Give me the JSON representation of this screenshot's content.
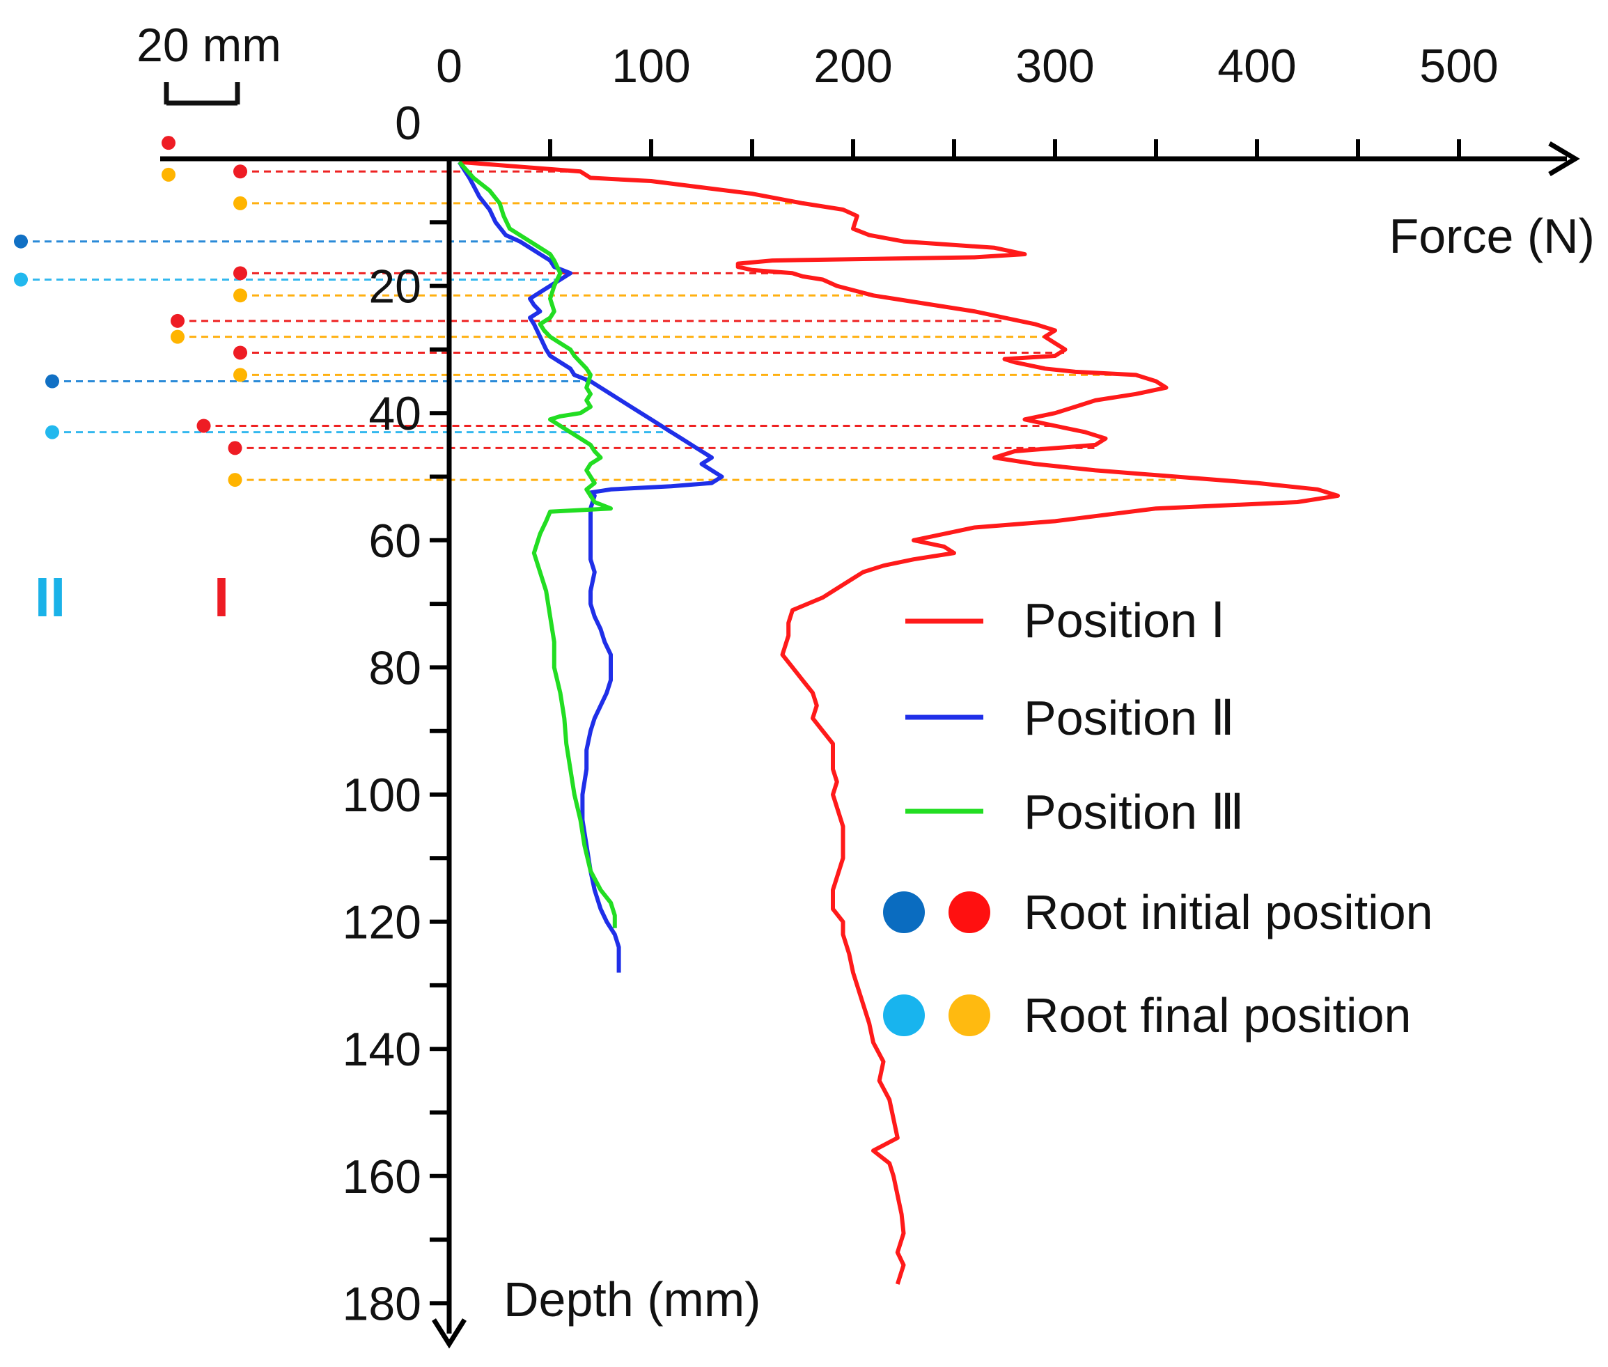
{
  "chart_data": {
    "type": "line",
    "orientation": "depth-down",
    "xlabel": "Force (N)",
    "ylabel": "Depth (mm)",
    "xlim": [
      0,
      550
    ],
    "ylim": [
      0,
      180
    ],
    "x_ticks": [
      0,
      100,
      200,
      300,
      400,
      500
    ],
    "y_ticks": [
      0,
      20,
      40,
      60,
      80,
      100,
      120,
      140,
      160,
      180
    ],
    "scale_bar_label": "20 mm",
    "position_markers": [
      {
        "label": "II",
        "color": "#1ab2e8"
      },
      {
        "label": "I",
        "color": "#ee1c24"
      }
    ],
    "series": [
      {
        "name": "Position Ⅰ",
        "color": "#ff1a1a",
        "points": [
          [
            5,
            0.5
          ],
          [
            65,
            2
          ],
          [
            70,
            3
          ],
          [
            100,
            3.5
          ],
          [
            150,
            5.5
          ],
          [
            175,
            7
          ],
          [
            195,
            8
          ],
          [
            202,
            9
          ],
          [
            200,
            11
          ],
          [
            208,
            12
          ],
          [
            225,
            13
          ],
          [
            270,
            14
          ],
          [
            285,
            15
          ],
          [
            260,
            15.5
          ],
          [
            160,
            16
          ],
          [
            143,
            16.5
          ],
          [
            143,
            17
          ],
          [
            150,
            17.5
          ],
          [
            170,
            18
          ],
          [
            175,
            18.5
          ],
          [
            185,
            19
          ],
          [
            192,
            20
          ],
          [
            210,
            21.5
          ],
          [
            240,
            23
          ],
          [
            260,
            24
          ],
          [
            275,
            25
          ],
          [
            290,
            26
          ],
          [
            300,
            27
          ],
          [
            295,
            28
          ],
          [
            300,
            29
          ],
          [
            305,
            30
          ],
          [
            300,
            31
          ],
          [
            275,
            31.5
          ],
          [
            280,
            32
          ],
          [
            295,
            33
          ],
          [
            310,
            33.5
          ],
          [
            340,
            34
          ],
          [
            350,
            35
          ],
          [
            355,
            36
          ],
          [
            340,
            37
          ],
          [
            320,
            38
          ],
          [
            310,
            39
          ],
          [
            300,
            40
          ],
          [
            285,
            41
          ],
          [
            300,
            42
          ],
          [
            315,
            43
          ],
          [
            325,
            44
          ],
          [
            320,
            45
          ],
          [
            280,
            46
          ],
          [
            270,
            47
          ],
          [
            290,
            48
          ],
          [
            320,
            49
          ],
          [
            360,
            50
          ],
          [
            400,
            51
          ],
          [
            430,
            52
          ],
          [
            440,
            53
          ],
          [
            420,
            54
          ],
          [
            350,
            55
          ],
          [
            325,
            56
          ],
          [
            300,
            57
          ],
          [
            260,
            58
          ],
          [
            245,
            59
          ],
          [
            230,
            60
          ],
          [
            245,
            61
          ],
          [
            250,
            62
          ],
          [
            230,
            63
          ],
          [
            215,
            64
          ],
          [
            205,
            65
          ],
          [
            200,
            66
          ],
          [
            195,
            67
          ],
          [
            190,
            68
          ],
          [
            185,
            69
          ],
          [
            170,
            71
          ],
          [
            168,
            73
          ],
          [
            168,
            75
          ],
          [
            165,
            78
          ],
          [
            170,
            80
          ],
          [
            175,
            82
          ],
          [
            180,
            84
          ],
          [
            182,
            86
          ],
          [
            180,
            88
          ],
          [
            185,
            90
          ],
          [
            190,
            92
          ],
          [
            190,
            94
          ],
          [
            190,
            96
          ],
          [
            192,
            98
          ],
          [
            190,
            100
          ],
          [
            192,
            102
          ],
          [
            195,
            105
          ],
          [
            195,
            108
          ],
          [
            195,
            110
          ],
          [
            193,
            112
          ],
          [
            190,
            115
          ],
          [
            190,
            118
          ],
          [
            195,
            120
          ],
          [
            195,
            122
          ],
          [
            198,
            125
          ],
          [
            200,
            128
          ],
          [
            202,
            130
          ],
          [
            205,
            133
          ],
          [
            208,
            136
          ],
          [
            210,
            139
          ],
          [
            215,
            142
          ],
          [
            213,
            145
          ],
          [
            218,
            148
          ],
          [
            220,
            151
          ],
          [
            222,
            154
          ],
          [
            210,
            156
          ],
          [
            218,
            158
          ],
          [
            220,
            160
          ],
          [
            222,
            163
          ],
          [
            224,
            166
          ],
          [
            225,
            169
          ],
          [
            222,
            172
          ],
          [
            225,
            174
          ],
          [
            222,
            177
          ]
        ]
      },
      {
        "name": "Position Ⅱ",
        "color": "#1f2fe8",
        "points": [
          [
            5,
            0.5
          ],
          [
            10,
            3
          ],
          [
            15,
            6
          ],
          [
            20,
            8
          ],
          [
            23,
            10
          ],
          [
            28,
            12
          ],
          [
            35,
            13
          ],
          [
            40,
            14
          ],
          [
            45,
            15
          ],
          [
            50,
            16
          ],
          [
            52,
            17
          ],
          [
            60,
            18
          ],
          [
            55,
            19
          ],
          [
            50,
            20
          ],
          [
            45,
            21
          ],
          [
            40,
            22
          ],
          [
            42,
            23
          ],
          [
            45,
            24
          ],
          [
            40,
            25
          ],
          [
            42,
            26
          ],
          [
            45,
            28
          ],
          [
            48,
            30
          ],
          [
            50,
            31
          ],
          [
            55,
            32
          ],
          [
            60,
            33
          ],
          [
            62,
            34
          ],
          [
            70,
            35
          ],
          [
            80,
            37
          ],
          [
            90,
            39
          ],
          [
            100,
            41
          ],
          [
            110,
            43
          ],
          [
            115,
            44
          ],
          [
            120,
            45
          ],
          [
            125,
            46
          ],
          [
            130,
            47
          ],
          [
            125,
            48
          ],
          [
            130,
            49
          ],
          [
            135,
            50
          ],
          [
            130,
            51
          ],
          [
            110,
            51.5
          ],
          [
            80,
            52
          ],
          [
            70,
            52.5
          ],
          [
            72,
            53
          ],
          [
            70,
            55
          ],
          [
            70,
            58
          ],
          [
            70,
            60
          ],
          [
            70,
            63
          ],
          [
            72,
            65
          ],
          [
            70,
            68
          ],
          [
            70,
            70
          ],
          [
            72,
            72
          ],
          [
            75,
            74
          ],
          [
            77,
            76
          ],
          [
            80,
            78
          ],
          [
            80,
            80
          ],
          [
            80,
            82
          ],
          [
            78,
            84
          ],
          [
            75,
            86
          ],
          [
            72,
            88
          ],
          [
            70,
            90
          ],
          [
            68,
            93
          ],
          [
            68,
            96
          ],
          [
            66,
            100
          ],
          [
            66,
            104
          ],
          [
            68,
            108
          ],
          [
            70,
            112
          ],
          [
            72,
            115
          ],
          [
            75,
            118
          ],
          [
            78,
            120
          ],
          [
            82,
            122
          ],
          [
            84,
            124
          ],
          [
            84,
            126
          ],
          [
            84,
            128
          ]
        ]
      },
      {
        "name": "Position Ⅲ",
        "color": "#22dd22",
        "points": [
          [
            5,
            0.5
          ],
          [
            12,
            3
          ],
          [
            20,
            5
          ],
          [
            25,
            7
          ],
          [
            27,
            9
          ],
          [
            30,
            11
          ],
          [
            40,
            13
          ],
          [
            45,
            14
          ],
          [
            50,
            15
          ],
          [
            52,
            16
          ],
          [
            55,
            18
          ],
          [
            52,
            20
          ],
          [
            50,
            22
          ],
          [
            52,
            24
          ],
          [
            50,
            25
          ],
          [
            45,
            26
          ],
          [
            47,
            27
          ],
          [
            50,
            28
          ],
          [
            55,
            29
          ],
          [
            60,
            30
          ],
          [
            62,
            31
          ],
          [
            65,
            32
          ],
          [
            68,
            33
          ],
          [
            70,
            34
          ],
          [
            68,
            36
          ],
          [
            70,
            37
          ],
          [
            68,
            38
          ],
          [
            70,
            39
          ],
          [
            65,
            40
          ],
          [
            55,
            40.5
          ],
          [
            50,
            41
          ],
          [
            55,
            42
          ],
          [
            60,
            43
          ],
          [
            65,
            44
          ],
          [
            70,
            45
          ],
          [
            72,
            46
          ],
          [
            75,
            47
          ],
          [
            70,
            48
          ],
          [
            68,
            49
          ],
          [
            70,
            50
          ],
          [
            72,
            51
          ],
          [
            68,
            52
          ],
          [
            70,
            53
          ],
          [
            72,
            54
          ],
          [
            80,
            55
          ],
          [
            50,
            55.5
          ],
          [
            48,
            57
          ],
          [
            45,
            59
          ],
          [
            42,
            62
          ],
          [
            45,
            65
          ],
          [
            48,
            68
          ],
          [
            50,
            72
          ],
          [
            52,
            76
          ],
          [
            52,
            80
          ],
          [
            55,
            84
          ],
          [
            57,
            88
          ],
          [
            58,
            92
          ],
          [
            60,
            96
          ],
          [
            62,
            100
          ],
          [
            65,
            104
          ],
          [
            67,
            108
          ],
          [
            70,
            112
          ],
          [
            75,
            115
          ],
          [
            80,
            117
          ],
          [
            82,
            119
          ],
          [
            82,
            121
          ]
        ]
      }
    ],
    "root_lines": [
      {
        "pos": "I",
        "state": "initial",
        "depth": 2,
        "offset_mm": 20
      },
      {
        "pos": "I",
        "state": "final",
        "depth": 7,
        "offset_mm": 20
      },
      {
        "pos": "II",
        "state": "initial",
        "depth": 13,
        "offset_mm": 41
      },
      {
        "pos": "II",
        "state": "final",
        "depth": 19,
        "offset_mm": 41
      },
      {
        "pos": "I",
        "state": "initial",
        "depth": 18,
        "offset_mm": 20
      },
      {
        "pos": "I",
        "state": "final",
        "depth": 21.5,
        "offset_mm": 20
      },
      {
        "pos": "I",
        "state": "initial",
        "depth": 25.5,
        "offset_mm": 26
      },
      {
        "pos": "I",
        "state": "final",
        "depth": 28,
        "offset_mm": 26
      },
      {
        "pos": "I",
        "state": "initial",
        "depth": 30.5,
        "offset_mm": 20
      },
      {
        "pos": "I",
        "state": "final",
        "depth": 34,
        "offset_mm": 20
      },
      {
        "pos": "II",
        "state": "initial",
        "depth": 35,
        "offset_mm": 38
      },
      {
        "pos": "I",
        "state": "initial",
        "depth": 42,
        "offset_mm": 23.5
      },
      {
        "pos": "II",
        "state": "final",
        "depth": 43,
        "offset_mm": 38
      },
      {
        "pos": "I",
        "state": "initial",
        "depth": 45.5,
        "offset_mm": 20.5
      },
      {
        "pos": "I",
        "state": "final",
        "depth": 50.5,
        "offset_mm": 20.5
      }
    ],
    "root_top_markers": [
      {
        "state": "initial",
        "color_name": "red",
        "offset_mm": 28,
        "depth": -2.5
      },
      {
        "state": "final",
        "color_name": "orange",
        "offset_mm": 28,
        "depth": 2.5
      }
    ],
    "legend": {
      "placement": "right",
      "lines": [
        {
          "label": "Position Ⅰ",
          "color": "#ff1a1a"
        },
        {
          "label": "Position Ⅱ",
          "color": "#1f2fe8"
        },
        {
          "label": "Position Ⅲ",
          "color": "#22dd22"
        }
      ],
      "dots": [
        {
          "label": "Root initial position",
          "colors": [
            "#0a6cc0",
            "#ff1010"
          ]
        },
        {
          "label": "Root final position",
          "colors": [
            "#18b4ee",
            "#ffba10"
          ]
        }
      ]
    },
    "colors": {
      "axis": "#000000",
      "red_initial": "#ee1c24",
      "blue_initial": "#1170c4",
      "blue_final": "#22b8ee",
      "orange_final": "#ffb400",
      "red_dash": "#ee2222",
      "orange_dash": "#ffb010",
      "blue_dash": "#2a8ad8",
      "cyan_dash": "#33b8ee"
    }
  }
}
